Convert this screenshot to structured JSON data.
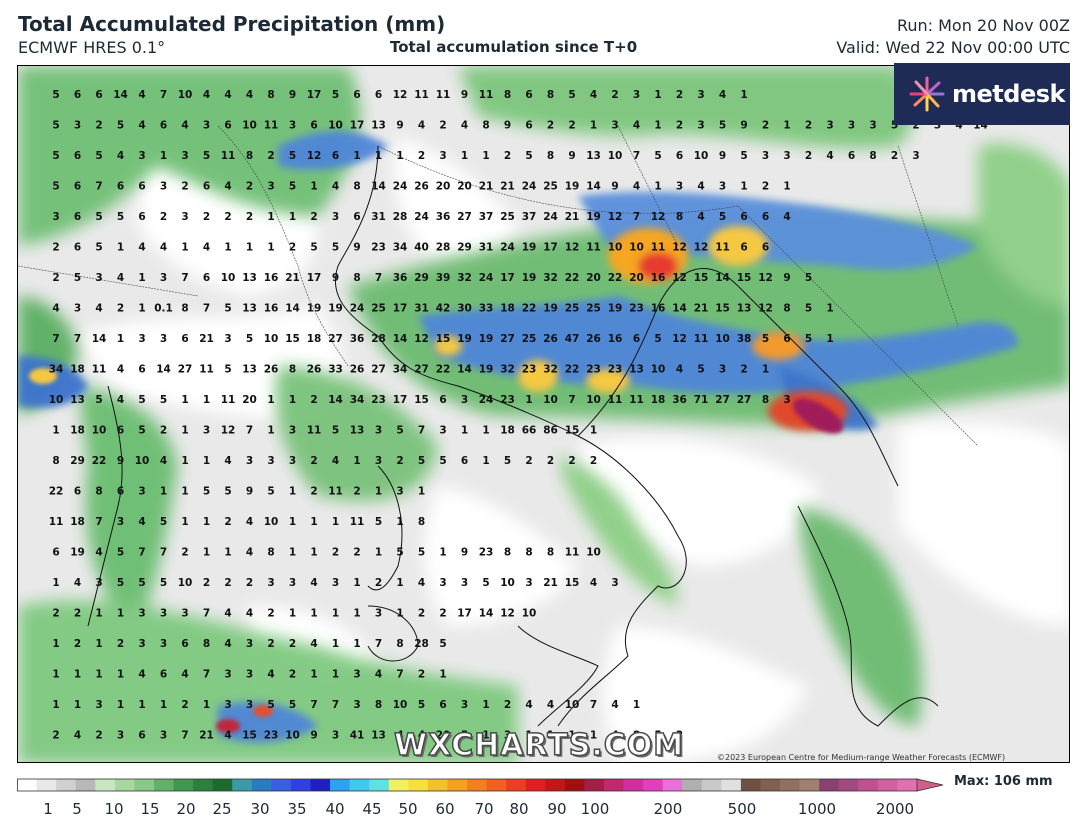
{
  "header": {
    "title": "Total Accumulated Precipitation (mm)",
    "model": "ECMWF HRES 0.1°",
    "subtitle": "Total accumulation since T+0",
    "run": "Run: Mon 20 Nov 00Z",
    "valid": "Valid: Wed 22 Nov 00:00 UTC"
  },
  "logo": {
    "text": "metdesk",
    "icon": "metdesk-starburst-icon"
  },
  "watermark": "WXCHARTS.COM",
  "copyright": "©2023 European Centre for Medium-range Weather Forecasts (ECMWF)",
  "colorbar": {
    "ticks": [
      "1",
      "5",
      "10",
      "15",
      "20",
      "25",
      "30",
      "35",
      "40",
      "45",
      "50",
      "60",
      "70",
      "80",
      "90",
      "100",
      "200",
      "500",
      "1000",
      "2000"
    ],
    "max_label": "Max: 106 mm"
  },
  "map_values": [
    [
      "5",
      "6",
      "6",
      "14",
      "4",
      "7",
      "10",
      "4",
      "4",
      "4",
      "8",
      "9",
      "17",
      "5",
      "6",
      "6",
      "12",
      "11",
      "11",
      "9",
      "11",
      "8",
      "6",
      "8",
      "5",
      "4",
      "2",
      "3",
      "1",
      "2",
      "3",
      "4",
      "1"
    ],
    [
      "5",
      "3",
      "2",
      "5",
      "4",
      "6",
      "4",
      "3",
      "6",
      "10",
      "11",
      "3",
      "6",
      "10",
      "17",
      "13",
      "9",
      "4",
      "2",
      "4",
      "8",
      "9",
      "6",
      "2",
      "2",
      "1",
      "3",
      "4",
      "1",
      "2",
      "3",
      "5",
      "9",
      "2",
      "1",
      "2",
      "3",
      "3",
      "3",
      "5",
      "2",
      "3",
      "4",
      "14"
    ],
    [
      "5",
      "6",
      "5",
      "4",
      "3",
      "1",
      "3",
      "5",
      "11",
      "8",
      "2",
      "5",
      "12",
      "6",
      "1",
      "1",
      "1",
      "2",
      "3",
      "1",
      "1",
      "2",
      "5",
      "8",
      "9",
      "13",
      "10",
      "7",
      "5",
      "6",
      "10",
      "9",
      "5",
      "3",
      "3",
      "2",
      "4",
      "6",
      "8",
      "2",
      "3"
    ],
    [
      "5",
      "6",
      "7",
      "6",
      "6",
      "3",
      "2",
      "6",
      "4",
      "2",
      "3",
      "5",
      "1",
      "4",
      "8",
      "14",
      "24",
      "26",
      "20",
      "20",
      "21",
      "21",
      "24",
      "25",
      "19",
      "14",
      "9",
      "4",
      "1",
      "3",
      "4",
      "3",
      "1",
      "2",
      "1"
    ],
    [
      "3",
      "6",
      "5",
      "5",
      "6",
      "2",
      "3",
      "2",
      "2",
      "2",
      "1",
      "1",
      "2",
      "3",
      "6",
      "31",
      "28",
      "24",
      "36",
      "27",
      "37",
      "25",
      "37",
      "24",
      "21",
      "19",
      "12",
      "7",
      "12",
      "8",
      "4",
      "5",
      "6",
      "6",
      "4"
    ],
    [
      "2",
      "6",
      "5",
      "1",
      "4",
      "4",
      "1",
      "4",
      "1",
      "1",
      "1",
      "2",
      "5",
      "5",
      "9",
      "23",
      "34",
      "40",
      "28",
      "29",
      "31",
      "24",
      "19",
      "17",
      "12",
      "11",
      "10",
      "10",
      "11",
      "12",
      "12",
      "11",
      "6",
      "6"
    ],
    [
      "2",
      "5",
      "3",
      "4",
      "1",
      "3",
      "7",
      "6",
      "10",
      "13",
      "16",
      "21",
      "17",
      "9",
      "8",
      "7",
      "36",
      "29",
      "39",
      "32",
      "24",
      "17",
      "19",
      "32",
      "22",
      "20",
      "22",
      "20",
      "16",
      "12",
      "15",
      "14",
      "15",
      "12",
      "9",
      "5"
    ],
    [
      "4",
      "3",
      "4",
      "2",
      "1",
      "0.1",
      "8",
      "7",
      "5",
      "13",
      "16",
      "14",
      "19",
      "19",
      "24",
      "25",
      "17",
      "31",
      "42",
      "30",
      "33",
      "18",
      "22",
      "19",
      "25",
      "25",
      "19",
      "23",
      "16",
      "14",
      "21",
      "15",
      "13",
      "12",
      "8",
      "5",
      "1"
    ],
    [
      "7",
      "7",
      "14",
      "1",
      "3",
      "3",
      "6",
      "21",
      "3",
      "5",
      "10",
      "15",
      "18",
      "27",
      "36",
      "28",
      "14",
      "12",
      "15",
      "19",
      "19",
      "27",
      "25",
      "26",
      "47",
      "26",
      "16",
      "6",
      "5",
      "12",
      "11",
      "10",
      "38",
      "5",
      "6",
      "5",
      "1"
    ],
    [
      "34",
      "18",
      "11",
      "4",
      "6",
      "14",
      "27",
      "11",
      "5",
      "13",
      "26",
      "8",
      "26",
      "33",
      "26",
      "27",
      "34",
      "27",
      "22",
      "14",
      "19",
      "32",
      "23",
      "32",
      "22",
      "23",
      "23",
      "13",
      "10",
      "4",
      "5",
      "3",
      "2",
      "1"
    ],
    [
      "10",
      "13",
      "5",
      "4",
      "5",
      "5",
      "1",
      "1",
      "11",
      "20",
      "1",
      "1",
      "2",
      "14",
      "34",
      "23",
      "17",
      "15",
      "6",
      "3",
      "24",
      "23",
      "1",
      "10",
      "7",
      "10",
      "11",
      "11",
      "18",
      "36",
      "71",
      "27",
      "27",
      "8",
      "3"
    ],
    [
      "1",
      "18",
      "10",
      "6",
      "5",
      "2",
      "1",
      "3",
      "12",
      "7",
      "1",
      "3",
      "11",
      "5",
      "13",
      "3",
      "5",
      "7",
      "3",
      "1",
      "1",
      "18",
      "66",
      "86",
      "15",
      "1"
    ],
    [
      "8",
      "29",
      "22",
      "9",
      "10",
      "4",
      "1",
      "1",
      "4",
      "3",
      "3",
      "3",
      "2",
      "4",
      "1",
      "3",
      "2",
      "5",
      "5",
      "6",
      "1",
      "5",
      "2",
      "2",
      "2",
      "2"
    ],
    [
      "22",
      "6",
      "8",
      "6",
      "3",
      "1",
      "1",
      "5",
      "5",
      "9",
      "5",
      "1",
      "2",
      "11",
      "2",
      "1",
      "3",
      "1"
    ],
    [
      "11",
      "18",
      "7",
      "3",
      "4",
      "5",
      "1",
      "1",
      "2",
      "4",
      "10",
      "1",
      "1",
      "1",
      "11",
      "5",
      "1",
      "8"
    ],
    [
      "6",
      "19",
      "4",
      "5",
      "7",
      "7",
      "2",
      "1",
      "1",
      "4",
      "8",
      "1",
      "1",
      "2",
      "2",
      "1",
      "5",
      "5",
      "1",
      "9",
      "23",
      "8",
      "8",
      "8",
      "11",
      "10"
    ],
    [
      "1",
      "4",
      "3",
      "5",
      "5",
      "5",
      "10",
      "2",
      "2",
      "2",
      "3",
      "3",
      "4",
      "3",
      "1",
      "2",
      "1",
      "4",
      "3",
      "3",
      "5",
      "10",
      "3",
      "21",
      "15",
      "4",
      "3"
    ],
    [
      "2",
      "2",
      "1",
      "1",
      "3",
      "3",
      "3",
      "7",
      "4",
      "4",
      "2",
      "1",
      "1",
      "1",
      "1",
      "3",
      "1",
      "2",
      "2",
      "17",
      "14",
      "12",
      "10"
    ],
    [
      "1",
      "2",
      "1",
      "2",
      "3",
      "3",
      "6",
      "8",
      "4",
      "3",
      "2",
      "2",
      "4",
      "1",
      "1",
      "7",
      "8",
      "28",
      "5"
    ],
    [
      "1",
      "1",
      "1",
      "1",
      "4",
      "6",
      "4",
      "7",
      "3",
      "3",
      "4",
      "2",
      "1",
      "1",
      "3",
      "4",
      "7",
      "2",
      "1"
    ],
    [
      "1",
      "1",
      "3",
      "1",
      "1",
      "1",
      "2",
      "1",
      "3",
      "3",
      "5",
      "5",
      "7",
      "7",
      "3",
      "8",
      "10",
      "5",
      "6",
      "3",
      "1",
      "2",
      "4",
      "4",
      "10",
      "7",
      "4",
      "1"
    ],
    [
      "2",
      "4",
      "2",
      "3",
      "6",
      "3",
      "7",
      "21",
      "4",
      "15",
      "23",
      "10",
      "9",
      "3",
      "41",
      "13",
      "4",
      "4",
      "20",
      "5",
      "1",
      "3",
      "1",
      "1",
      "1",
      "1",
      "4",
      "8",
      "5",
      "2"
    ]
  ]
}
